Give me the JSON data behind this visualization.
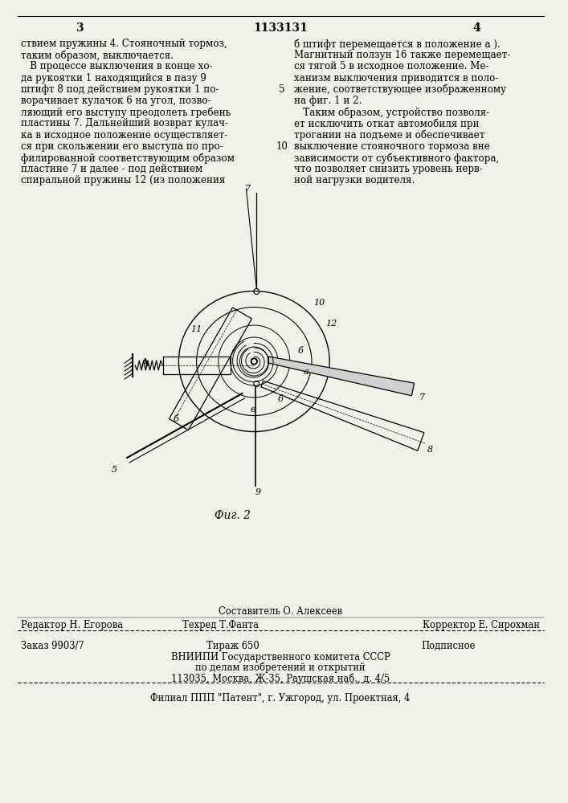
{
  "page_num_left": "3",
  "page_num_center": "1133131",
  "page_num_right": "4",
  "text_left_col": [
    "ствием пружины 4. Стояночный тормоз,",
    "таким образом, выключается.",
    "   В процессе выключения в конце хо-",
    "да рукоятки 1 находящийся в пазу 9",
    "штифт 8 под действием рукоятки 1 по-",
    "ворачивает кулачок 6 на угол, позво-",
    "ляющий его выступу преодолеть гребень",
    "пластины 7. Дальнейший возврат кулач-",
    "ка в исходное положение осуществляет-",
    "ся при скольжении его выступа по про-",
    "филированной соответствующим образом",
    "пластине 7 и далее - под действием",
    "спиральной пружины 12 (из положения"
  ],
  "text_right_col": [
    "б штифт перемещается в положение а ).",
    "Магнитный ползун 16 также перемещает-",
    "ся тягой 5 в исходное положение. Ме-",
    "ханизм выключения приводится в поло-",
    "жение, соответствующее изображенному",
    "на фиг. 1 и 2.",
    "   Таким образом, устройство позволя-",
    "ет исключить откат автомобиля при",
    "трогании на подъеме и обеспечивает",
    "выключение стояночного тормоза вне",
    "зависимости от субъективного фактора,",
    "что позволяет снизить уровень нерв-",
    "ной нагрузки водителя."
  ],
  "line_number_5": "5",
  "line_number_10": "10",
  "fig_caption": "Фиг. 2",
  "footer_comp": "Составитель О. Алексеев",
  "footer_editor": "Редактор Н. Егорова",
  "footer_tech": "Техред Т.Фанта",
  "footer_corr": "Корректор Е. Сирохман",
  "footer_order": "Заказ 9903/7",
  "footer_print": "Тираж 650",
  "footer_sub": "Подписное",
  "footer_org1": "ВНИИПИ Государственного комитета СССР",
  "footer_org2": "по делам изобретений и открытий",
  "footer_org3": "113035, Москва, Ж-35, Раушская наб., д. 4/5",
  "footer_branch": "Филиал ППП \"Патент\", г. Ужгород, ул. Проектная, 4",
  "bg_color": "#f0efe8",
  "text_color": "#000000"
}
